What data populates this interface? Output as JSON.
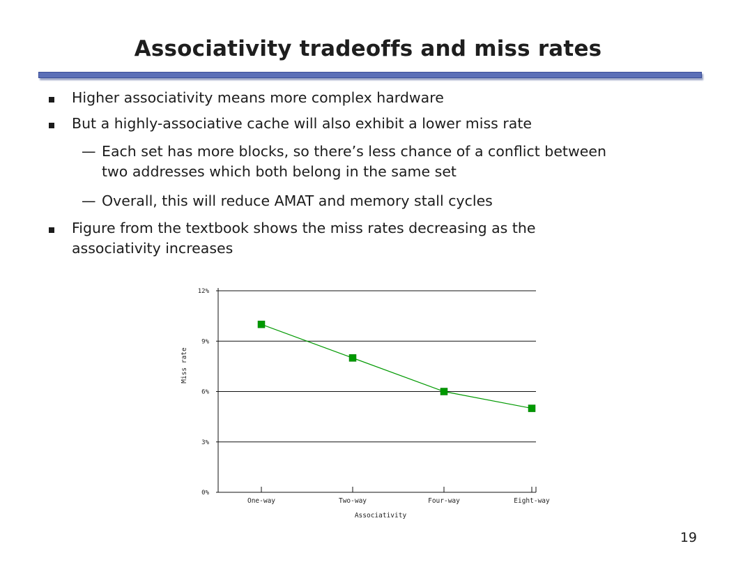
{
  "slide": {
    "title": "Associativity tradeoffs and miss rates",
    "page_number": "19"
  },
  "bullets": [
    {
      "level": 1,
      "text": "Higher associativity means more complex hardware"
    },
    {
      "level": 1,
      "text": "But a highly-associative cache will also exhibit a lower miss rate"
    },
    {
      "level": 2,
      "text": "Each set has more blocks, so there’s less chance of a conflict between",
      "text2": "two addresses which both belong in the same set"
    },
    {
      "level": 2,
      "text": "Overall, this will reduce AMAT and memory stall cycles"
    },
    {
      "level": 1,
      "text": "Figure from the textbook shows the miss rates decreasing as the",
      "text2": "associativity increases"
    }
  ],
  "chart_data": {
    "type": "line",
    "title": "",
    "xlabel": "Associativity",
    "ylabel": "Miss rate",
    "categories": [
      "One-way",
      "Two-way",
      "Four-way",
      "Eight-way"
    ],
    "series": [
      {
        "values": [
          10.0,
          8.0,
          6.0,
          5.0
        ],
        "color": "#009900"
      }
    ],
    "ylim": [
      0,
      12
    ],
    "yticks": [
      0,
      3,
      6,
      9,
      12
    ],
    "ytick_labels": [
      "0%",
      "3%",
      "6%",
      "9%",
      "12%"
    ],
    "grid": true,
    "legend": "none"
  }
}
